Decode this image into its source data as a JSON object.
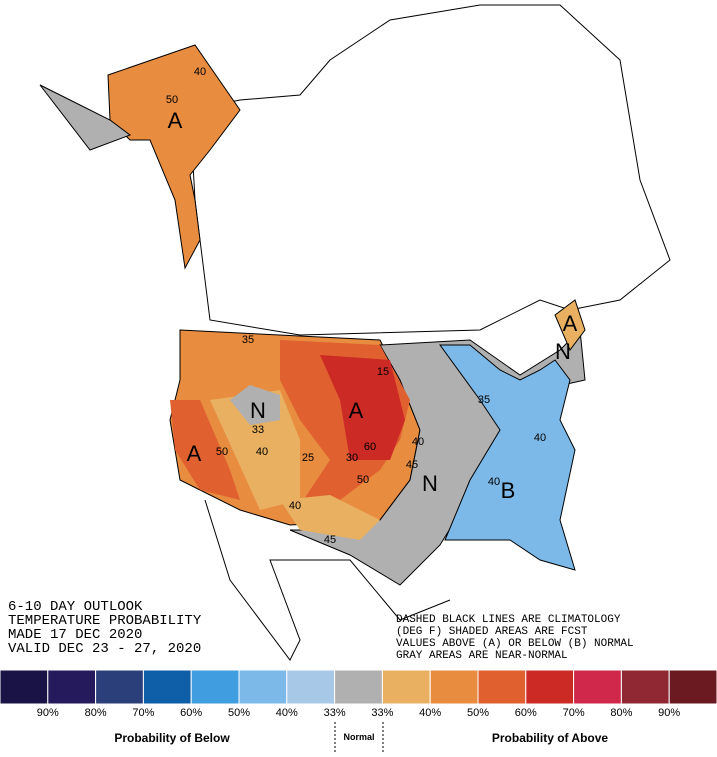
{
  "outlook": {
    "lines": [
      "6-10 DAY OUTLOOK",
      "TEMPERATURE PROBABILITY",
      "MADE  17 DEC 2020",
      "VALID  DEC 23 - 27, 2020"
    ]
  },
  "notes": {
    "lines": [
      "DASHED BLACK LINES ARE CLIMATOLOGY",
      "(DEG F) SHADED AREAS ARE FCST",
      "VALUES ABOVE (A) OR BELOW (B) NORMAL",
      "GRAY AREAS ARE NEAR-NORMAL"
    ]
  },
  "map_labels": [
    "A",
    "40",
    "50",
    "A",
    "N",
    "33",
    "A",
    "50",
    "40",
    "25",
    "30",
    "60",
    "50",
    "40",
    "35",
    "N",
    "B",
    "40",
    "40",
    "15",
    "45",
    "40",
    "45",
    "A",
    "N",
    "35"
  ],
  "legend": {
    "colors": [
      "#1a1446",
      "#241a5c",
      "#2b3f7a",
      "#0f5ea8",
      "#3f9de0",
      "#7cb9e8",
      "#a8c8e8",
      "#b0b0b0",
      "#e8b060",
      "#e88c40",
      "#e06030",
      "#cc2a25",
      "#d0284a",
      "#8f2832",
      "#6b1a22"
    ],
    "labels": [
      "90%",
      "80%",
      "70%",
      "60%",
      "50%",
      "40%",
      "33%",
      "33%",
      "40%",
      "50%",
      "60%",
      "70%",
      "80%",
      "90%"
    ],
    "below_title": "Probability of Below",
    "normal_title": "Normal",
    "above_title": "Probability of Above"
  }
}
